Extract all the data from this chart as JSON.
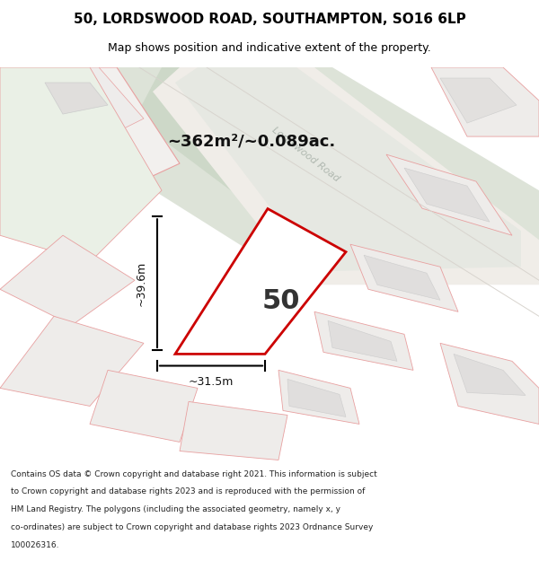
{
  "title": "50, LORDSWOOD ROAD, SOUTHAMPTON, SO16 6LP",
  "subtitle": "Map shows position and indicative extent of the property.",
  "footer": "Contains OS data © Crown copyright and database right 2021. This information is subject to Crown copyright and database rights 2023 and is reproduced with the permission of HM Land Registry. The polygons (including the associated geometry, namely x, y co-ordinates) are subject to Crown copyright and database rights 2023 Ordnance Survey 100026316.",
  "area_label": "~362m²/~0.089ac.",
  "width_label": "~31.5m",
  "height_label": "~39.6m",
  "house_number": "50",
  "bg_color": "#f0f0eb",
  "map_bg": "#f5f5f0",
  "road_color": "#e8e8e0",
  "plot_fill": "#ffffff",
  "plot_edge": "#cc0000",
  "neighbor_fill": "#e8e8e0",
  "neighbor_edge": "#e8a0a0",
  "road_stripe": "#d0d8cc",
  "road_label_color": "#aaaaaa"
}
